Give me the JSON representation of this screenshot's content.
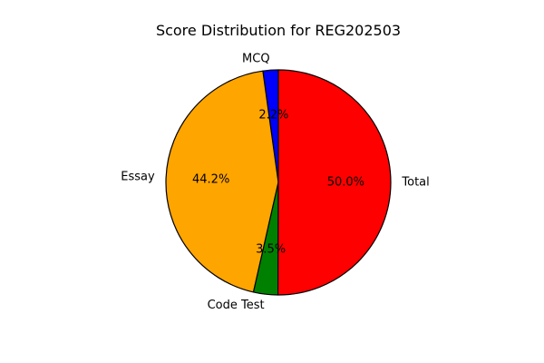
{
  "chart_data": {
    "type": "pie",
    "title": "Score Distribution for REG202503",
    "labels": [
      "MCQ",
      "Essay",
      "Code Test",
      "Total"
    ],
    "values": [
      2.2,
      44.2,
      3.5,
      50.0
    ],
    "percent_labels": [
      "2.2%",
      "44.2%",
      "3.5%",
      "50.0%"
    ],
    "colors": [
      "#0000ff",
      "#ffa500",
      "#008000",
      "#ff0000"
    ],
    "start_angle_deg": 90,
    "direction": "counterclockwise",
    "edge_color": "#000000",
    "legend": "none"
  }
}
